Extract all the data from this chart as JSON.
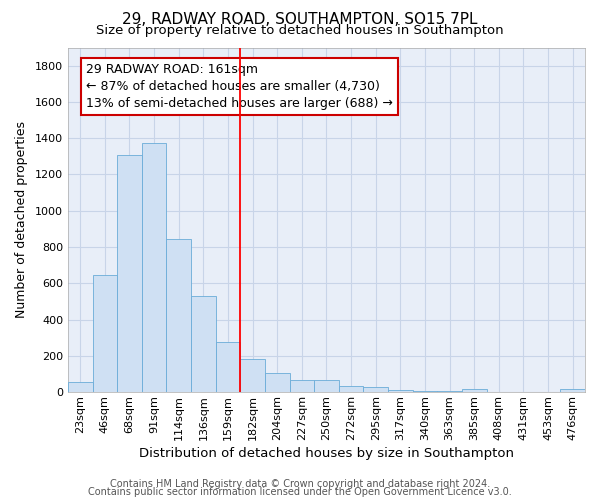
{
  "title1": "29, RADWAY ROAD, SOUTHAMPTON, SO15 7PL",
  "title2": "Size of property relative to detached houses in Southampton",
  "xlabel": "Distribution of detached houses by size in Southampton",
  "ylabel": "Number of detached properties",
  "categories": [
    "23sqm",
    "46sqm",
    "68sqm",
    "91sqm",
    "114sqm",
    "136sqm",
    "159sqm",
    "182sqm",
    "204sqm",
    "227sqm",
    "250sqm",
    "272sqm",
    "295sqm",
    "317sqm",
    "340sqm",
    "363sqm",
    "385sqm",
    "408sqm",
    "431sqm",
    "453sqm",
    "476sqm"
  ],
  "values": [
    55,
    645,
    1310,
    1375,
    845,
    530,
    275,
    185,
    105,
    65,
    65,
    35,
    27,
    10,
    5,
    5,
    15,
    0,
    0,
    0,
    15
  ],
  "bar_color": "#cfe0f3",
  "bar_edge_color": "#6aacd8",
  "red_line_index": 7,
  "annotation_lines": [
    "29 RADWAY ROAD: 161sqm",
    "← 87% of detached houses are smaller (4,730)",
    "13% of semi-detached houses are larger (688) →"
  ],
  "annotation_box_color": "#ffffff",
  "annotation_box_edge": "#cc0000",
  "ylim": [
    0,
    1900
  ],
  "yticks": [
    0,
    200,
    400,
    600,
    800,
    1000,
    1200,
    1400,
    1600,
    1800
  ],
  "fig_background_color": "#ffffff",
  "plot_background_color": "#e8eef8",
  "grid_color": "#c8d4e8",
  "footer1": "Contains HM Land Registry data © Crown copyright and database right 2024.",
  "footer2": "Contains public sector information licensed under the Open Government Licence v3.0.",
  "title1_fontsize": 11,
  "title2_fontsize": 9.5,
  "xlabel_fontsize": 9.5,
  "ylabel_fontsize": 9,
  "tick_fontsize": 8,
  "annotation_fontsize": 9,
  "footer_fontsize": 7
}
